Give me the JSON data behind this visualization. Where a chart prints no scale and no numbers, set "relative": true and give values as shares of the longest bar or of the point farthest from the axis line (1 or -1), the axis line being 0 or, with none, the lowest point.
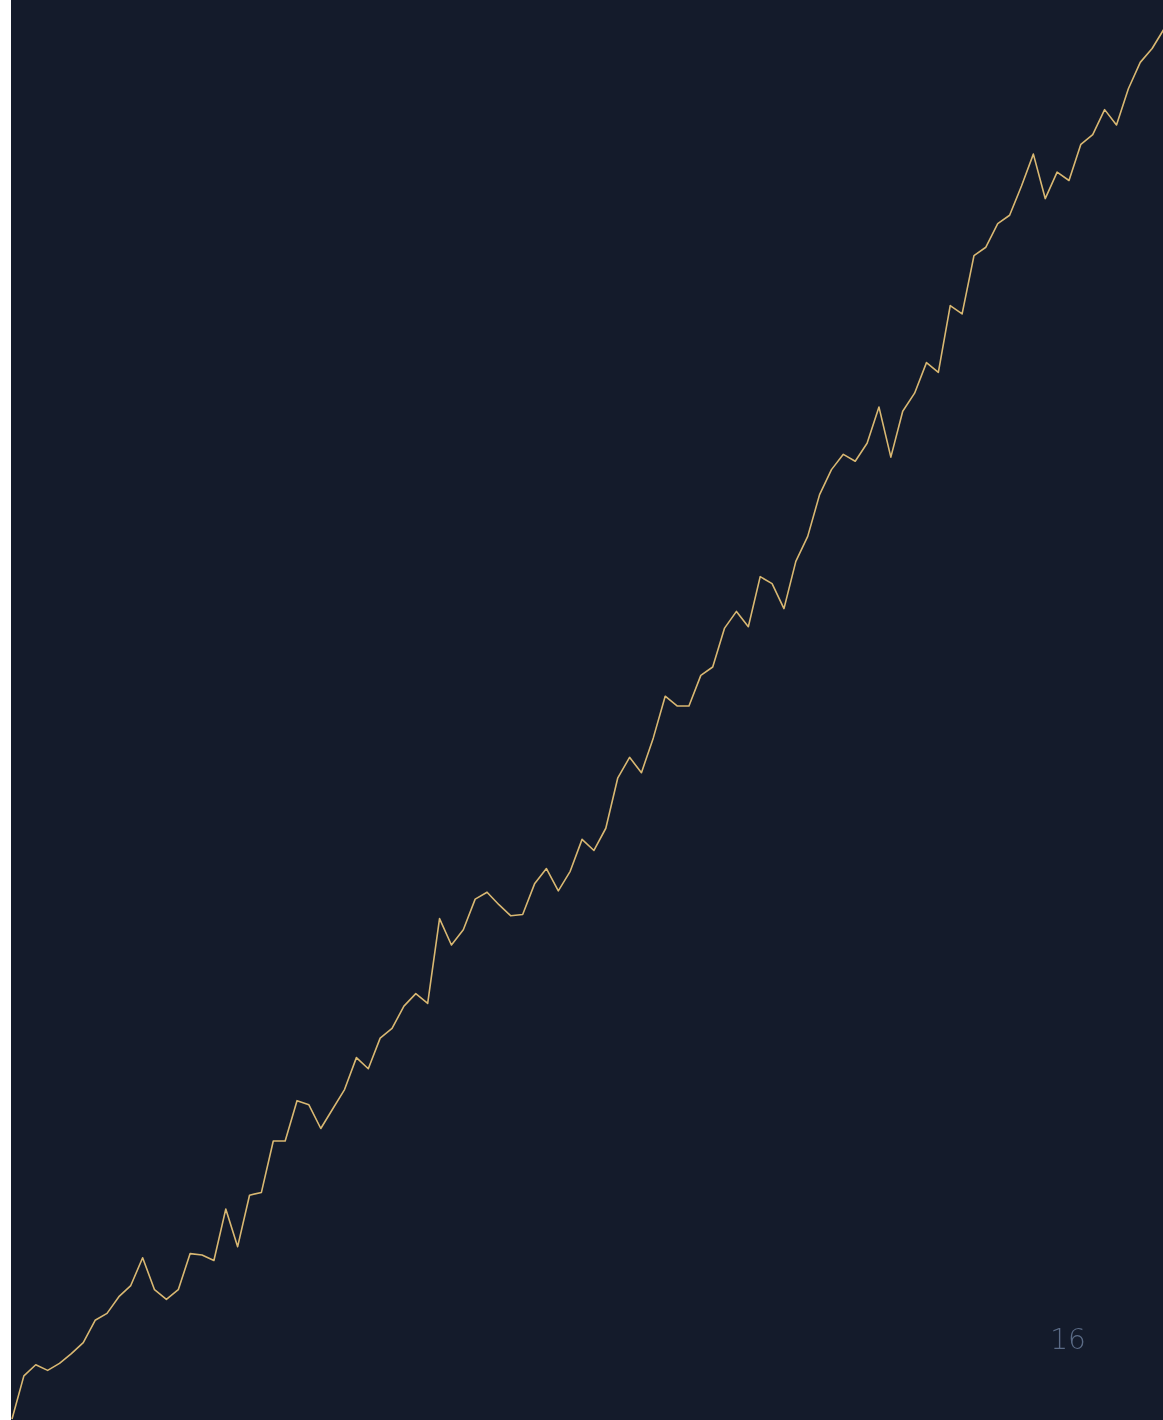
{
  "chart_data": {
    "type": "line",
    "relative": true,
    "categories": [
      null,
      null,
      null,
      null,
      null,
      null,
      null,
      null,
      null,
      null,
      null,
      null,
      null,
      null,
      null,
      null,
      null,
      null,
      null,
      null,
      null,
      null,
      null,
      null,
      null,
      null,
      null,
      null,
      null,
      null,
      null,
      null,
      null,
      null,
      null,
      null,
      null,
      null,
      null,
      null,
      null,
      null,
      null,
      null,
      null,
      null,
      null,
      null,
      null,
      null,
      null,
      null,
      null,
      null,
      null,
      null,
      null,
      null,
      null,
      null,
      null,
      null,
      null,
      null,
      null,
      null,
      null,
      null,
      null,
      null,
      null,
      null,
      null,
      null,
      null,
      null,
      null,
      null,
      null,
      null,
      null,
      null,
      null,
      null,
      null,
      null,
      null,
      null,
      null,
      null,
      null,
      null,
      null,
      null,
      null,
      null,
      null,
      null
    ],
    "series": [
      {
        "color": "#d9b872",
        "values": [
          0,
          0.031,
          0.039,
          0.035,
          0.04,
          0.047,
          0.055,
          0.071,
          0.076,
          0.088,
          0.096,
          0.116,
          0.093,
          0.086,
          0.093,
          0.119,
          0.118,
          0.114,
          0.151,
          0.124,
          0.161,
          0.163,
          0.2,
          0.2,
          0.229,
          0.226,
          0.209,
          0.223,
          0.237,
          0.26,
          0.252,
          0.274,
          0.281,
          0.297,
          0.306,
          0.299,
          0.36,
          0.341,
          0.352,
          0.374,
          0.379,
          0.37,
          0.362,
          0.363,
          0.385,
          0.396,
          0.38,
          0.394,
          0.417,
          0.409,
          0.425,
          0.461,
          0.476,
          0.465,
          0.49,
          0.52,
          0.513,
          0.513,
          0.535,
          0.541,
          0.569,
          0.581,
          0.57,
          0.606,
          0.601,
          0.583,
          0.617,
          0.635,
          0.665,
          0.683,
          0.694,
          0.689,
          0.702,
          0.728,
          0.692,
          0.725,
          0.738,
          0.76,
          0.753,
          0.801,
          0.795,
          0.837,
          0.843,
          0.86,
          0.866,
          0.887,
          0.91,
          0.878,
          0.897,
          0.891,
          0.917,
          0.924,
          0.942,
          0.931,
          0.957,
          0.976,
          0.986,
          1.0
        ]
      }
    ],
    "annotations": [
      "16"
    ]
  }
}
